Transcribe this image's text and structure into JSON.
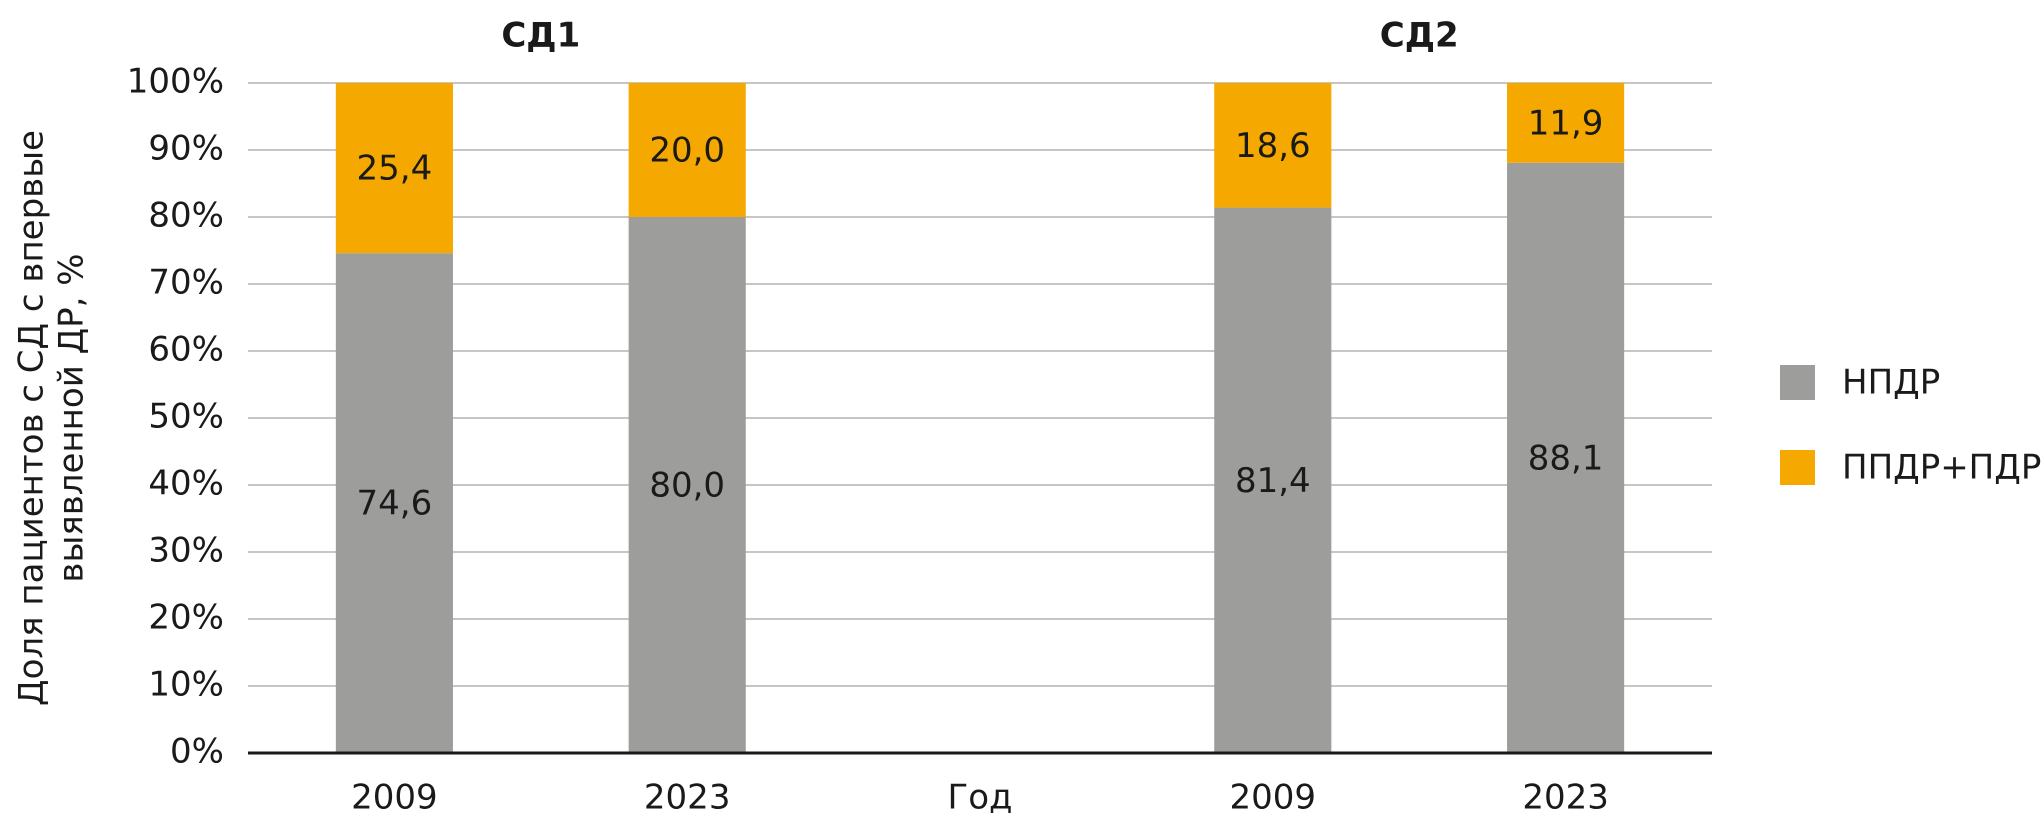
{
  "chart_data": {
    "type": "stacked_bar",
    "ylabel": [
      "Доля пациентов с СД с впервые",
      "выявленной ДР, %"
    ],
    "xlabel": "Год",
    "groups": [
      {
        "label": "СД1",
        "categories": [
          0,
          1
        ]
      },
      {
        "label": "СД2",
        "categories": [
          3,
          4
        ]
      }
    ],
    "categories": [
      "2009",
      "2023",
      null,
      "2009",
      "2023"
    ],
    "series": [
      {
        "name": "НПДР",
        "color": "#9d9d9c",
        "values": [
          74.6,
          80.0,
          null,
          81.4,
          88.1
        ],
        "value_labels": [
          "74,6",
          "80,0",
          null,
          "81,4",
          "88,1"
        ]
      },
      {
        "name": "ППДР+ПДР",
        "color": "#f5a800",
        "values": [
          25.4,
          20.0,
          null,
          18.6,
          11.9
        ],
        "value_labels": [
          "25,4",
          "20,0",
          null,
          "18,6",
          "11,9"
        ]
      }
    ],
    "ylim": [
      0,
      100
    ],
    "yticks": [
      {
        "value": 0,
        "label": "0%"
      },
      {
        "value": 10,
        "label": "10%"
      },
      {
        "value": 20,
        "label": "20%"
      },
      {
        "value": 30,
        "label": "30%"
      },
      {
        "value": 40,
        "label": "40%"
      },
      {
        "value": 50,
        "label": "50%"
      },
      {
        "value": 60,
        "label": "60%"
      },
      {
        "value": 70,
        "label": "70%"
      },
      {
        "value": 80,
        "label": "80%"
      },
      {
        "value": 90,
        "label": "90%"
      },
      {
        "value": 100,
        "label": "100%"
      }
    ],
    "grid": true,
    "legend": "right"
  }
}
